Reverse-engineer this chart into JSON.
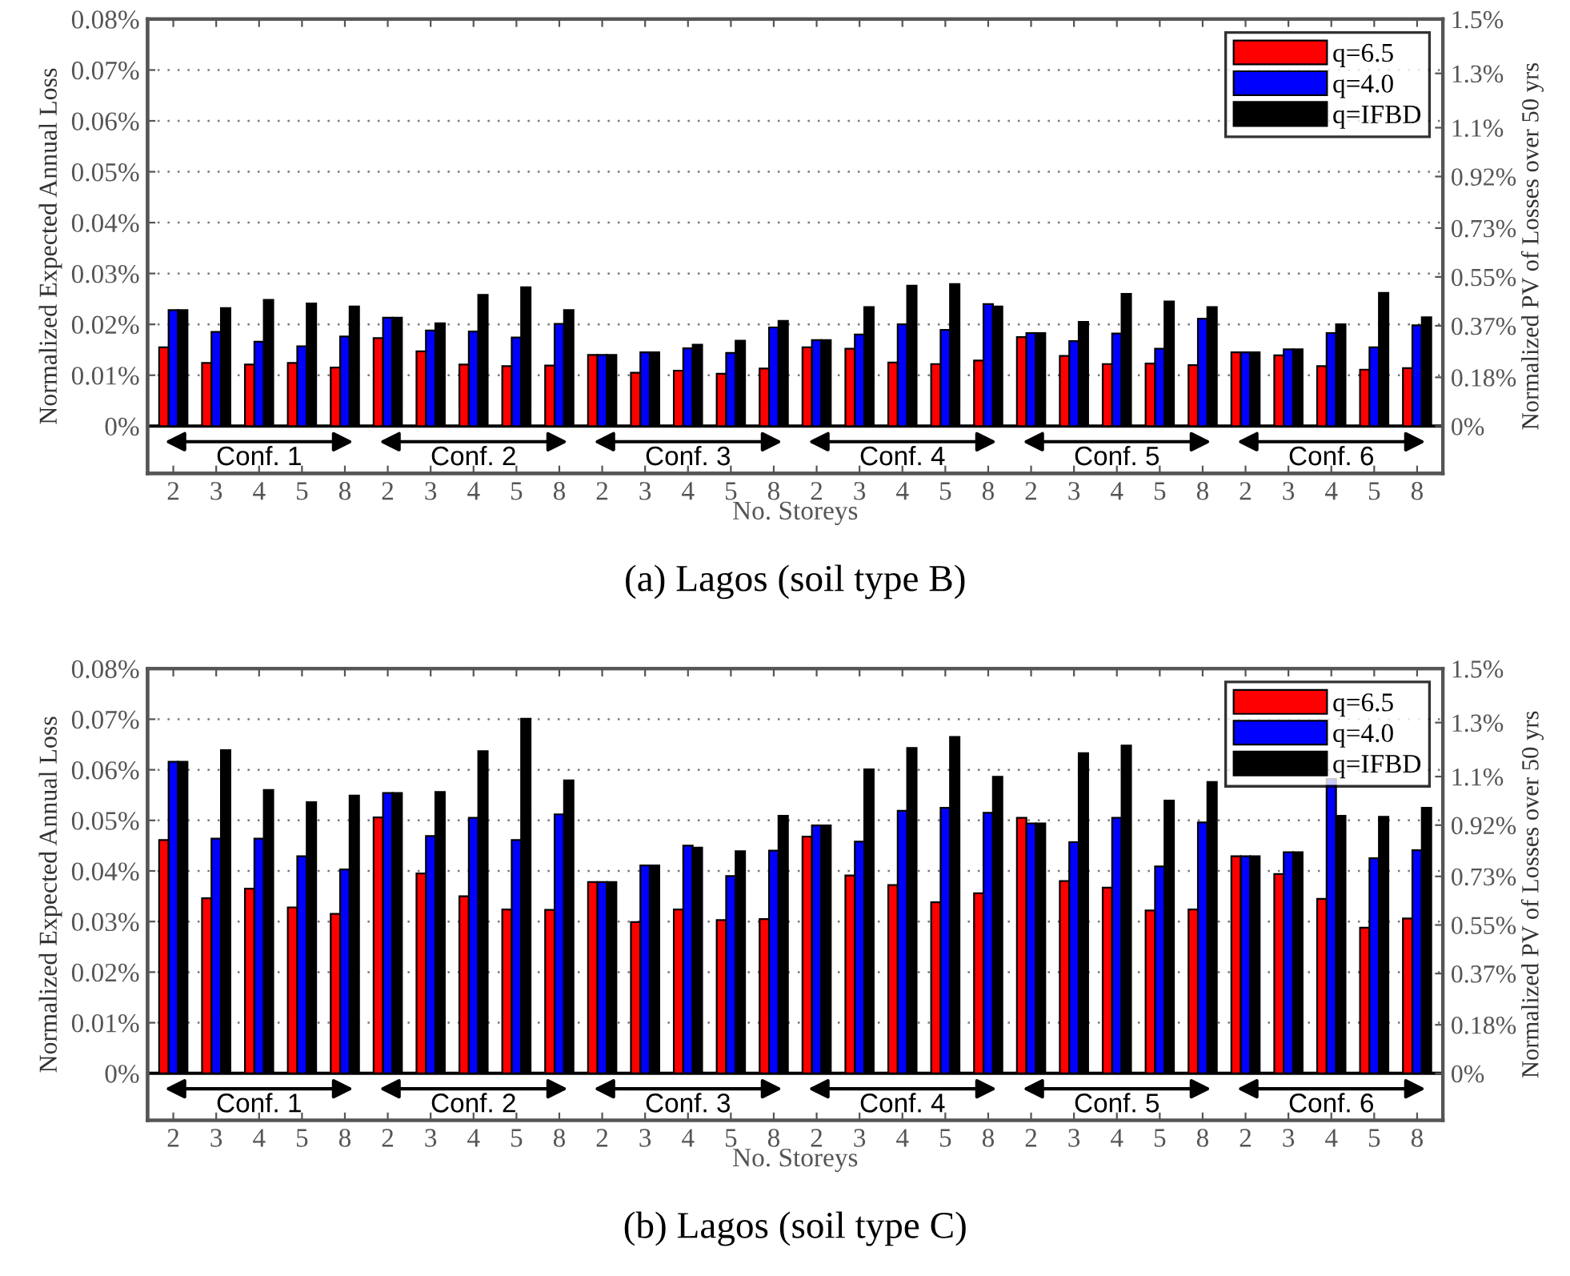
{
  "chart_data": [
    {
      "type": "bar",
      "title": "(a) Lagos (soil type B)",
      "xlabel": "No. Storeys",
      "ylabel": "Normalized Expected Annual Loss",
      "y2label": "Normalized PV of Losses over 50 yrs",
      "categories": [
        "2",
        "3",
        "4",
        "5",
        "8",
        "2",
        "3",
        "4",
        "5",
        "8",
        "2",
        "3",
        "4",
        "5",
        "8",
        "2",
        "3",
        "4",
        "5",
        "8",
        "2",
        "3",
        "4",
        "5",
        "8",
        "2",
        "3",
        "4",
        "5",
        "8"
      ],
      "series": [
        {
          "name": "q=6.5",
          "color": "#ff0000",
          "values": [
            0.0155,
            0.0124,
            0.0121,
            0.0124,
            0.0115,
            0.0173,
            0.0147,
            0.0121,
            0.0118,
            0.0119,
            0.014,
            0.0105,
            0.0109,
            0.0103,
            0.0113,
            0.0155,
            0.0152,
            0.0125,
            0.0122,
            0.0129,
            0.0175,
            0.0138,
            0.0122,
            0.0123,
            0.012,
            0.0145,
            0.0139,
            0.0118,
            0.0111,
            0.0114
          ]
        },
        {
          "name": "q=4.0",
          "color": "#0000ff",
          "values": [
            0.0228,
            0.0185,
            0.0166,
            0.0157,
            0.0176,
            0.0213,
            0.0188,
            0.0186,
            0.0174,
            0.0201,
            0.014,
            0.0145,
            0.0153,
            0.0144,
            0.0194,
            0.0169,
            0.018,
            0.02,
            0.0189,
            0.024,
            0.0183,
            0.0167,
            0.0182,
            0.0152,
            0.0211,
            0.0145,
            0.0151,
            0.0183,
            0.0155,
            0.0198
          ]
        },
        {
          "name": "q=IFBD",
          "color": "#000000",
          "values": [
            0.0228,
            0.0232,
            0.0248,
            0.0241,
            0.0235,
            0.0213,
            0.0202,
            0.0258,
            0.0273,
            0.0228,
            0.014,
            0.0145,
            0.016,
            0.0168,
            0.0207,
            0.0169,
            0.0234,
            0.0276,
            0.0279,
            0.0235,
            0.0183,
            0.0205,
            0.026,
            0.0245,
            0.0234,
            0.0145,
            0.0151,
            0.02,
            0.0262,
            0.0214
          ]
        }
      ],
      "annotations": [
        "Conf. 1",
        "Conf. 2",
        "Conf. 3",
        "Conf. 4",
        "Conf. 5",
        "Conf. 6"
      ],
      "ylim": [
        -0.0093,
        0.08
      ],
      "yticks": [
        {
          "value": 0,
          "label": "0%"
        },
        {
          "value": 0.01,
          "label": "0.01%"
        },
        {
          "value": 0.02,
          "label": "0.02%"
        },
        {
          "value": 0.03,
          "label": "0.03%"
        },
        {
          "value": 0.04,
          "label": "0.04%"
        },
        {
          "value": 0.05,
          "label": "0.05%"
        },
        {
          "value": 0.06,
          "label": "0.06%"
        },
        {
          "value": 0.07,
          "label": "0.07%"
        },
        {
          "value": 0.08,
          "label": "0.08%"
        }
      ],
      "y2lim": [
        -0.174,
        1.5
      ],
      "y2ticks": [
        {
          "value": 0,
          "label": "0%"
        },
        {
          "value": 0.18,
          "label": "0.18%"
        },
        {
          "value": 0.37,
          "label": "0.37%"
        },
        {
          "value": 0.55,
          "label": "0.55%"
        },
        {
          "value": 0.73,
          "label": "0.73%"
        },
        {
          "value": 0.92,
          "label": "0.92%"
        },
        {
          "value": 1.1,
          "label": "1.1%"
        },
        {
          "value": 1.3,
          "label": "1.3%"
        },
        {
          "value": 1.5,
          "label": "1.5%"
        }
      ],
      "ref_lines": [
        {
          "axis": "y",
          "value": 0,
          "color": "#000000",
          "line_style": "solid"
        }
      ],
      "grid": "y",
      "legend": "top right"
    },
    {
      "type": "bar",
      "title": "(b) Lagos (soil type C)",
      "xlabel": "No. Storeys",
      "ylabel": "Normalized Expected Annual Loss",
      "y2label": "Normalized PV of Losses over 50 yrs",
      "categories": [
        "2",
        "3",
        "4",
        "5",
        "8",
        "2",
        "3",
        "4",
        "5",
        "8",
        "2",
        "3",
        "4",
        "5",
        "8",
        "2",
        "3",
        "4",
        "5",
        "8",
        "2",
        "3",
        "4",
        "5",
        "8",
        "2",
        "3",
        "4",
        "5",
        "8"
      ],
      "series": [
        {
          "name": "q=6.5",
          "color": "#ff0000",
          "values": [
            0.0461,
            0.0346,
            0.0365,
            0.0328,
            0.0315,
            0.0506,
            0.0395,
            0.035,
            0.0324,
            0.0323,
            0.0378,
            0.0299,
            0.0324,
            0.0303,
            0.0305,
            0.0468,
            0.0391,
            0.0372,
            0.0338,
            0.0356,
            0.0505,
            0.038,
            0.0367,
            0.0322,
            0.0324,
            0.0429,
            0.0394,
            0.0345,
            0.0288,
            0.0306
          ]
        },
        {
          "name": "q=4.0",
          "color": "#0000ff",
          "values": [
            0.0616,
            0.0464,
            0.0464,
            0.0429,
            0.0403,
            0.0554,
            0.0469,
            0.0505,
            0.0461,
            0.0512,
            0.0378,
            0.0411,
            0.045,
            0.039,
            0.044,
            0.049,
            0.0458,
            0.0519,
            0.0525,
            0.0515,
            0.0494,
            0.0457,
            0.0505,
            0.0409,
            0.0496,
            0.0429,
            0.0437,
            0.0582,
            0.0425,
            0.0441
          ]
        },
        {
          "name": "q=IFBD",
          "color": "#000000",
          "values": [
            0.0616,
            0.0639,
            0.056,
            0.0536,
            0.0549,
            0.0554,
            0.0556,
            0.0637,
            0.0701,
            0.0579,
            0.0378,
            0.0411,
            0.0446,
            0.0439,
            0.0509,
            0.049,
            0.0601,
            0.0643,
            0.0665,
            0.0586,
            0.0494,
            0.0633,
            0.0648,
            0.0539,
            0.0576,
            0.0429,
            0.0437,
            0.0509,
            0.0507,
            0.0525
          ]
        }
      ],
      "annotations": [
        "Conf. 1",
        "Conf. 2",
        "Conf. 3",
        "Conf. 4",
        "Conf. 5",
        "Conf. 6"
      ],
      "ylim": [
        -0.0093,
        0.08
      ],
      "yticks": [
        {
          "value": 0,
          "label": "0%"
        },
        {
          "value": 0.01,
          "label": "0.01%"
        },
        {
          "value": 0.02,
          "label": "0.02%"
        },
        {
          "value": 0.03,
          "label": "0.03%"
        },
        {
          "value": 0.04,
          "label": "0.04%"
        },
        {
          "value": 0.05,
          "label": "0.05%"
        },
        {
          "value": 0.06,
          "label": "0.06%"
        },
        {
          "value": 0.07,
          "label": "0.07%"
        },
        {
          "value": 0.08,
          "label": "0.08%"
        }
      ],
      "y2lim": [
        -0.174,
        1.5
      ],
      "y2ticks": [
        {
          "value": 0,
          "label": "0%"
        },
        {
          "value": 0.18,
          "label": "0.18%"
        },
        {
          "value": 0.37,
          "label": "0.37%"
        },
        {
          "value": 0.55,
          "label": "0.55%"
        },
        {
          "value": 0.73,
          "label": "0.73%"
        },
        {
          "value": 0.92,
          "label": "0.92%"
        },
        {
          "value": 1.1,
          "label": "1.1%"
        },
        {
          "value": 1.3,
          "label": "1.3%"
        },
        {
          "value": 1.5,
          "label": "1.5%"
        }
      ],
      "ref_lines": [
        {
          "axis": "y",
          "value": 0,
          "color": "#000000",
          "line_style": "solid"
        }
      ],
      "grid": "y",
      "legend": "top right"
    }
  ]
}
